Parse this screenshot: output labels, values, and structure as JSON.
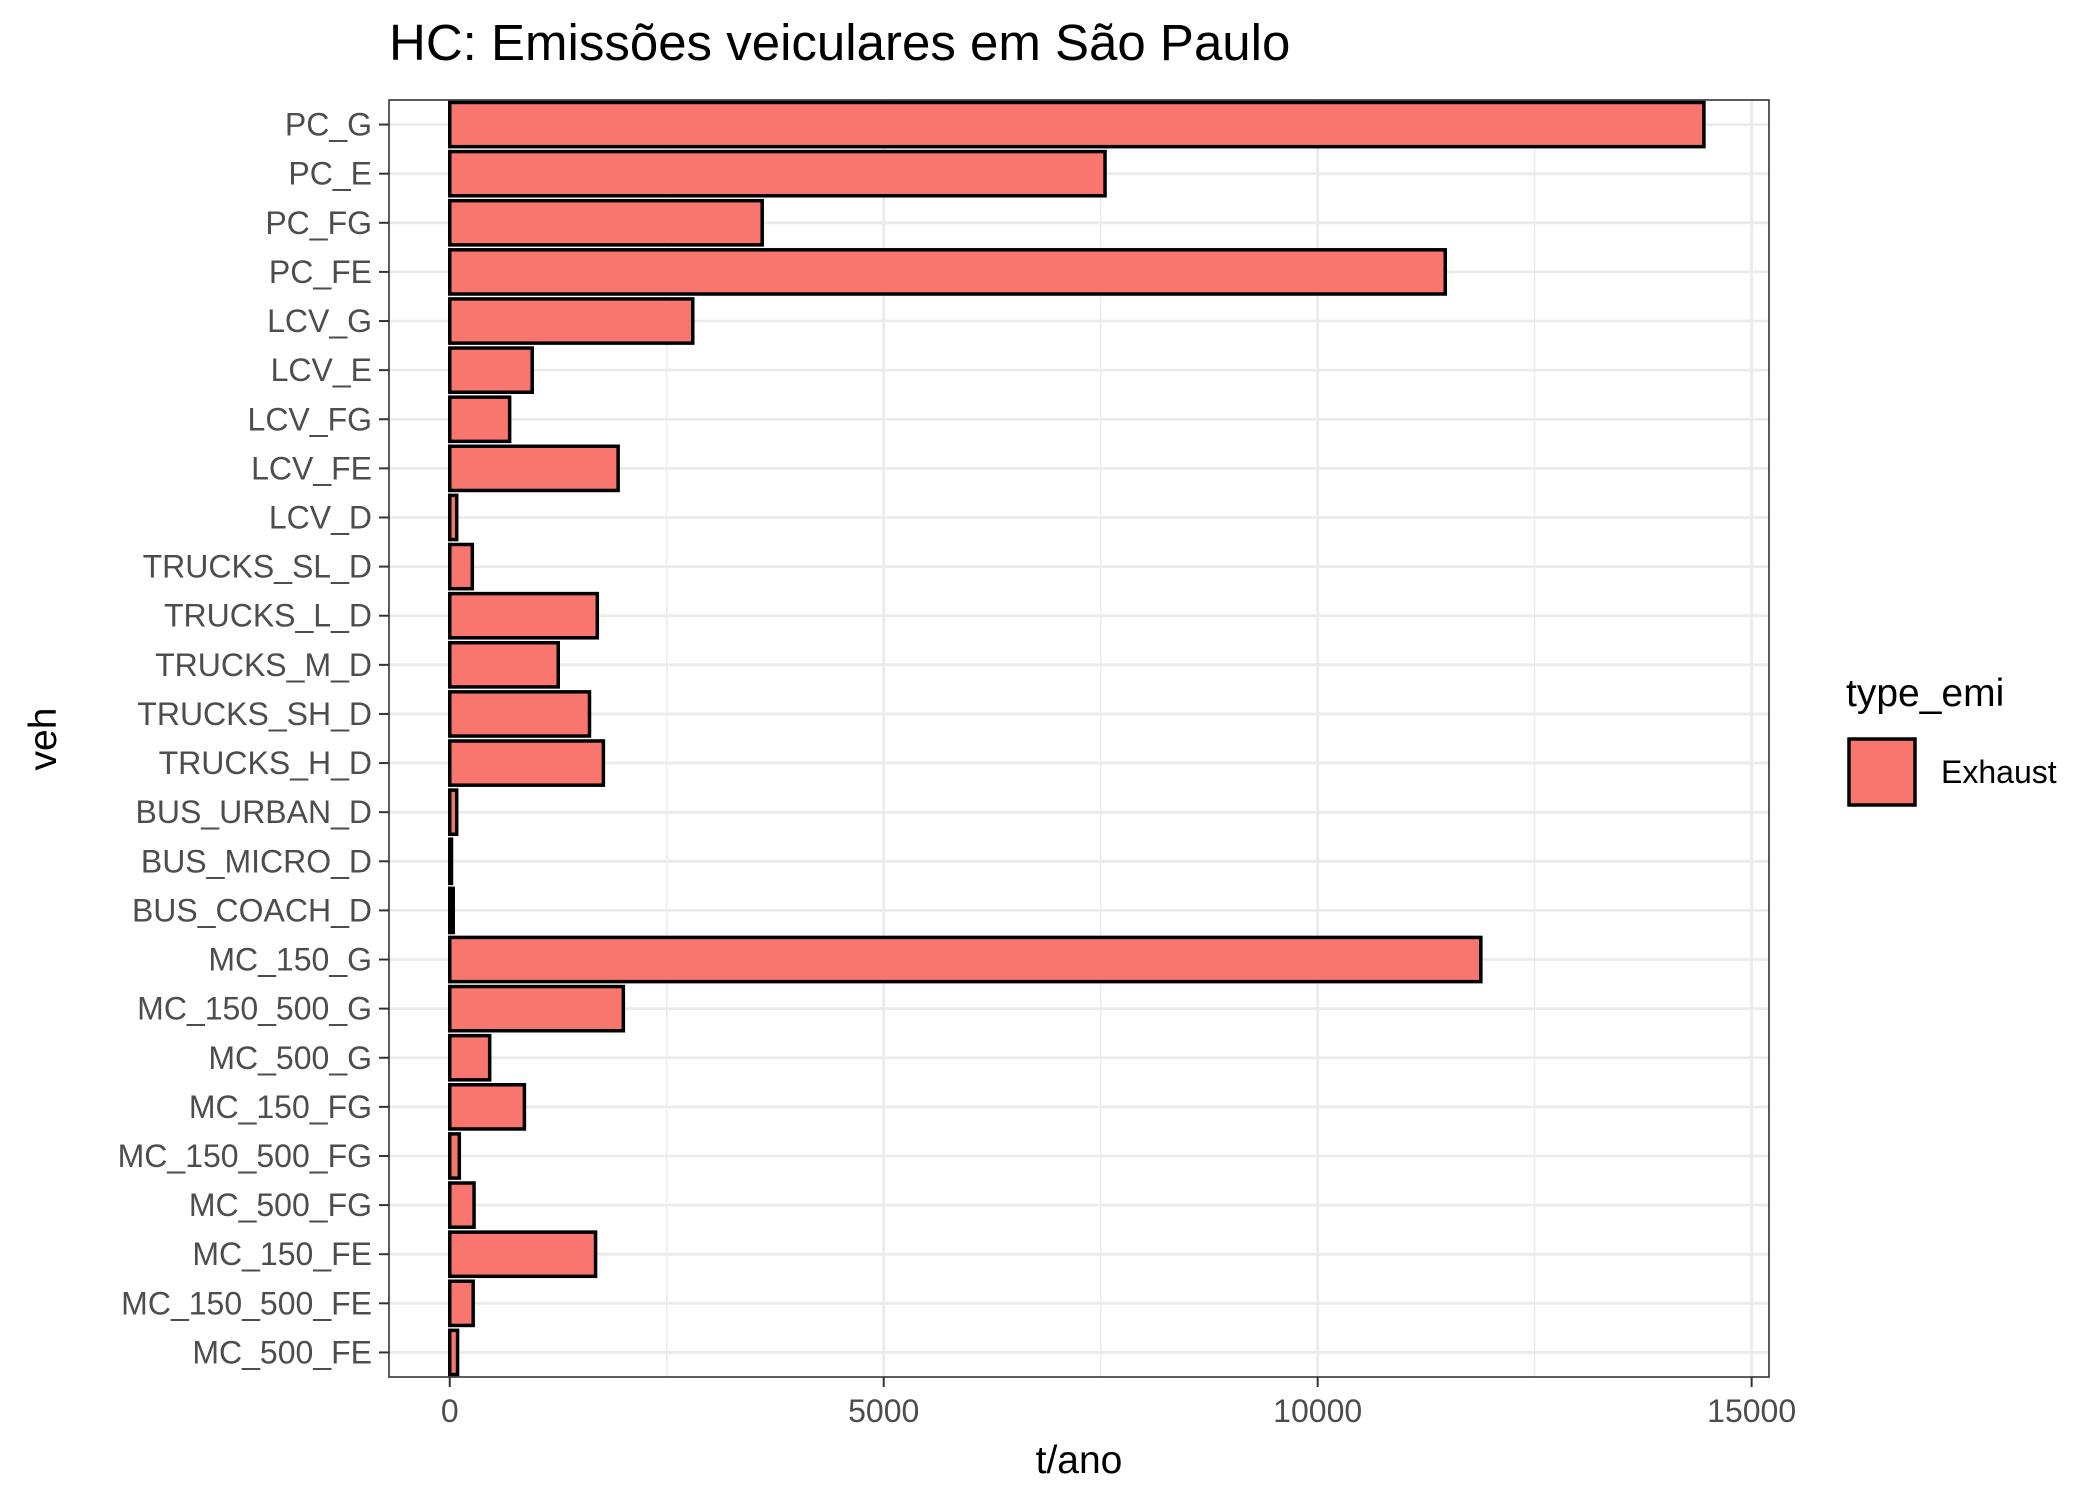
{
  "chart_data": {
    "type": "bar",
    "orientation": "horizontal",
    "title": "HC: Emissões veiculares em São Paulo",
    "xlabel": "t/ano",
    "ylabel": "veh",
    "xlim": [
      -700,
      15200
    ],
    "x_ticks": [
      0,
      5000,
      10000,
      15000
    ],
    "x_tick_labels": [
      "0",
      "5000",
      "10000",
      "15000"
    ],
    "grid": true,
    "legend": {
      "title": "type_emi",
      "position": "right"
    },
    "bar_color": "#F8766D",
    "bar_outline": "#000000",
    "categories": [
      "PC_G",
      "PC_E",
      "PC_FG",
      "PC_FE",
      "LCV_G",
      "LCV_E",
      "LCV_FG",
      "LCV_FE",
      "LCV_D",
      "TRUCKS_SL_D",
      "TRUCKS_L_D",
      "TRUCKS_M_D",
      "TRUCKS_SH_D",
      "TRUCKS_H_D",
      "BUS_URBAN_D",
      "BUS_MICRO_D",
      "BUS_COACH_D",
      "MC_150_G",
      "MC_150_500_G",
      "MC_500_G",
      "MC_150_FG",
      "MC_150_500_FG",
      "MC_500_FG",
      "MC_150_FE",
      "MC_150_500_FE",
      "MC_500_FE"
    ],
    "series": [
      {
        "name": "Exhaust",
        "values": [
          14450,
          7550,
          3600,
          11470,
          2800,
          950,
          690,
          1940,
          80,
          260,
          1700,
          1250,
          1610,
          1770,
          80,
          20,
          40,
          11880,
          2000,
          460,
          860,
          110,
          280,
          1680,
          270,
          90
        ]
      }
    ]
  }
}
